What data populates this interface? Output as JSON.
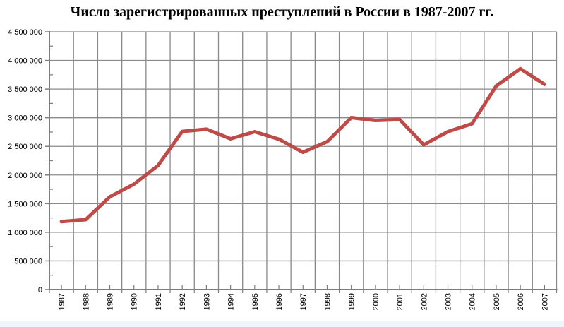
{
  "page": {
    "background": "#ffffff",
    "bottom_strip_color": "#eef5fb"
  },
  "chart_data": {
    "type": "line",
    "title": "Число зарегистрированных преступлений в России в 1987-2007 гг.",
    "categories": [
      "1987",
      "1988",
      "1989",
      "1990",
      "1991",
      "1992",
      "1993",
      "1994",
      "1995",
      "1996",
      "1997",
      "1998",
      "1999",
      "2000",
      "2001",
      "2002",
      "2003",
      "2004",
      "2005",
      "2006",
      "2007"
    ],
    "values": [
      1185914,
      1220361,
      1619181,
      1839451,
      2167964,
      2760652,
      2799614,
      2632708,
      2755669,
      2625081,
      2397311,
      2581940,
      3001748,
      2952367,
      2968255,
      2526305,
      2756398,
      2893810,
      3554738,
      3855373,
      3582541
    ],
    "xlabel": "",
    "ylabel": "",
    "ylim": [
      0,
      4500000
    ],
    "ytick_step": 500000,
    "ytick_labels": [
      "0",
      "500 000",
      "1 000 000",
      "1 500 000",
      "2 000 000",
      "2 500 000",
      "3 000 000",
      "3 500 000",
      "4 000 000",
      "4 500 000"
    ],
    "grid": "on",
    "legend": "none",
    "colors": {
      "line": "#bf4b48",
      "grid": "#8a8a8a",
      "axis": "#7d7d7d",
      "text": "#000000"
    }
  }
}
